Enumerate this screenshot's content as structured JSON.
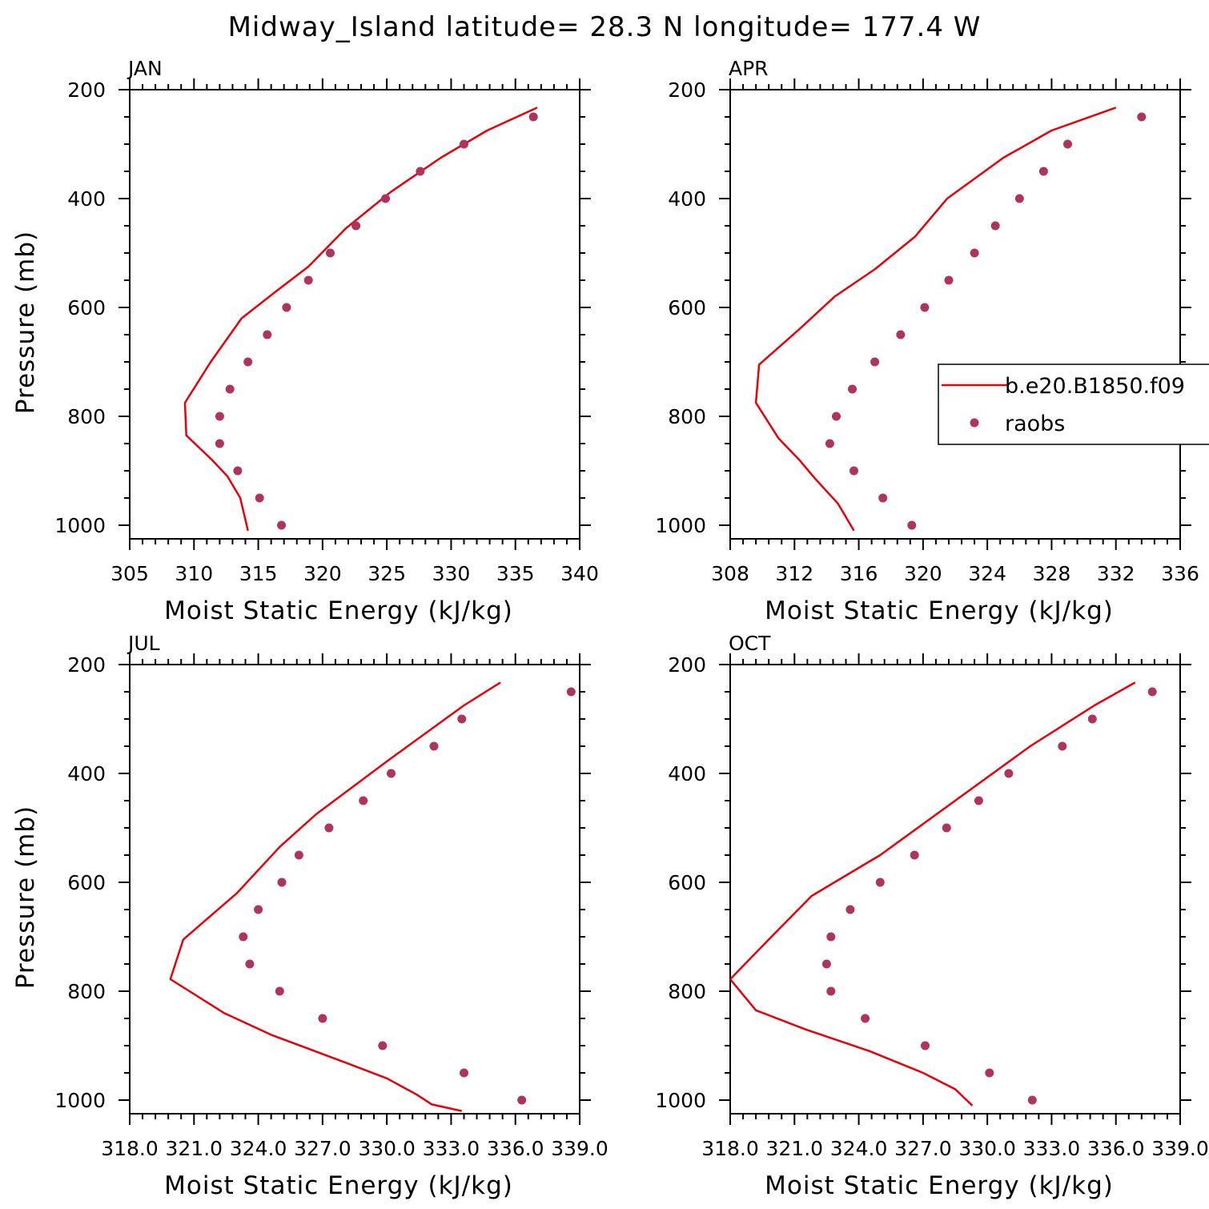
{
  "title": "Midway_Island  latitude= 28.3 N longitude= 177.4 W",
  "colors": {
    "model_line": "#e8000b",
    "raobs_marker": "#b0325f",
    "axes": "#000000"
  },
  "legend": {
    "entries": [
      {
        "label": "b.e20.B1850.f09",
        "symbol": "line",
        "color": "#e8000b"
      },
      {
        "label": "raobs",
        "symbol": "dot",
        "color": "#b0325f"
      }
    ],
    "placement": "right side of APR panel, clipped at figure edge"
  },
  "chart_data": [
    {
      "type": "line",
      "panel_label": "JAN",
      "xlabel": "Moist Static Energy (kJ/kg)",
      "ylabel": "Pressure (mb)",
      "xlim": [
        305,
        340
      ],
      "ylim": [
        1025,
        200
      ],
      "x_ticks": [
        305,
        310,
        315,
        320,
        325,
        330,
        335,
        340
      ],
      "x_tick_labels": [
        "305",
        "310",
        "315",
        "320",
        "325",
        "330",
        "335",
        "340"
      ],
      "y_ticks": [
        200,
        400,
        600,
        800,
        1000
      ],
      "y_tick_labels": [
        "200",
        "400",
        "600",
        "800",
        "1000"
      ],
      "series": [
        {
          "name": "b.e20.B1850.f09",
          "kind": "line",
          "x": [
            336.7,
            332.8,
            329.2,
            325.3,
            321.8,
            318.9,
            316.4,
            313.7,
            311.3,
            309.3,
            309.4,
            311.4,
            312.6,
            313.6,
            314.2
          ],
          "y": [
            233,
            275,
            325,
            388,
            455,
            525,
            570,
            620,
            700,
            775,
            835,
            880,
            910,
            950,
            1010
          ]
        },
        {
          "name": "raobs",
          "kind": "scatter",
          "x": [
            336.4,
            331.0,
            327.6,
            324.9,
            322.6,
            320.6,
            318.9,
            317.2,
            315.7,
            314.2,
            312.8,
            312.0,
            312.0,
            313.4,
            315.1,
            316.8
          ],
          "y": [
            250,
            300,
            350,
            400,
            450,
            500,
            550,
            600,
            650,
            700,
            750,
            800,
            850,
            900,
            950,
            1000
          ]
        }
      ]
    },
    {
      "type": "line",
      "panel_label": "APR",
      "xlabel": "Moist Static Energy (kJ/kg)",
      "ylabel": "",
      "xlim": [
        308,
        336
      ],
      "ylim": [
        1025,
        200
      ],
      "x_ticks": [
        308,
        312,
        316,
        320,
        324,
        328,
        332,
        336
      ],
      "x_tick_labels": [
        "308",
        "312",
        "316",
        "320",
        "324",
        "328",
        "332",
        "336"
      ],
      "y_ticks": [
        200,
        400,
        600,
        800,
        1000
      ],
      "y_tick_labels": [
        "200",
        "400",
        "600",
        "800",
        "1000"
      ],
      "series": [
        {
          "name": "b.e20.B1850.f09",
          "kind": "line",
          "x": [
            332.0,
            328.0,
            325.0,
            321.5,
            319.5,
            317.0,
            314.5,
            312.3,
            309.8,
            309.6,
            311.0,
            312.3,
            313.3,
            314.7,
            315.7
          ],
          "y": [
            233,
            275,
            325,
            400,
            470,
            530,
            580,
            640,
            705,
            775,
            840,
            880,
            915,
            960,
            1010
          ]
        },
        {
          "name": "raobs",
          "kind": "scatter",
          "x": [
            333.6,
            329.0,
            327.5,
            326.0,
            324.5,
            323.2,
            321.6,
            320.1,
            318.6,
            317.0,
            315.6,
            314.6,
            314.2,
            315.7,
            317.5,
            319.3
          ],
          "y": [
            250,
            300,
            350,
            400,
            450,
            500,
            550,
            600,
            650,
            700,
            750,
            800,
            850,
            900,
            950,
            1000
          ]
        }
      ]
    },
    {
      "type": "line",
      "panel_label": "JUL",
      "xlabel": "Moist Static Energy (kJ/kg)",
      "ylabel": "Pressure (mb)",
      "xlim": [
        318.0,
        339.0
      ],
      "ylim": [
        1025,
        200
      ],
      "x_ticks": [
        318,
        321,
        324,
        327,
        330,
        333,
        336,
        339
      ],
      "x_tick_labels": [
        "318.0",
        "321.0",
        "324.0",
        "327.0",
        "330.0",
        "333.0",
        "336.0",
        "339.0"
      ],
      "series": [
        {
          "name": "b.e20.B1850.f09",
          "kind": "line",
          "x": [
            335.3,
            333.6,
            330.1,
            326.7,
            325.0,
            323.0,
            320.5,
            319.9,
            322.4,
            324.6,
            328.0,
            330.0,
            331.4,
            332.1,
            333.5
          ],
          "y": [
            233,
            275,
            375,
            475,
            535,
            620,
            705,
            778,
            840,
            880,
            930,
            960,
            990,
            1008,
            1020
          ]
        },
        {
          "name": "raobs",
          "kind": "scatter",
          "x": [
            338.6,
            333.5,
            332.2,
            330.2,
            328.9,
            327.3,
            325.9,
            325.1,
            324.0,
            323.3,
            323.6,
            325.0,
            327.0,
            329.8,
            333.6,
            336.3
          ],
          "y": [
            250,
            300,
            350,
            400,
            450,
            500,
            550,
            600,
            650,
            700,
            750,
            800,
            850,
            900,
            950,
            1000
          ]
        }
      ],
      "y_ticks": [
        200,
        400,
        600,
        800,
        1000
      ],
      "y_tick_labels": [
        "200",
        "400",
        "600",
        "800",
        "1000"
      ]
    },
    {
      "type": "line",
      "panel_label": "OCT",
      "xlabel": "Moist Static Energy (kJ/kg)",
      "ylabel": "",
      "xlim": [
        318.0,
        339.0
      ],
      "ylim": [
        1025,
        200
      ],
      "x_ticks": [
        318,
        321,
        324,
        327,
        330,
        333,
        336,
        339
      ],
      "x_tick_labels": [
        "318.0",
        "321.0",
        "324.0",
        "327.0",
        "330.0",
        "333.0",
        "336.0",
        "339.0"
      ],
      "series": [
        {
          "name": "b.e20.B1850.f09",
          "kind": "line",
          "x": [
            336.9,
            335.0,
            332.0,
            328.5,
            325.0,
            321.8,
            319.8,
            318.0,
            319.2,
            321.5,
            324.5,
            327.0,
            328.5,
            329.3
          ],
          "y": [
            233,
            275,
            350,
            450,
            550,
            625,
            705,
            778,
            835,
            870,
            910,
            950,
            980,
            1010
          ]
        },
        {
          "name": "raobs",
          "kind": "scatter",
          "x": [
            337.7,
            334.9,
            333.5,
            331.0,
            329.6,
            328.1,
            326.6,
            325.0,
            323.6,
            322.7,
            322.5,
            322.7,
            324.3,
            327.1,
            330.1,
            332.1
          ],
          "y": [
            250,
            300,
            350,
            400,
            450,
            500,
            550,
            600,
            650,
            700,
            750,
            800,
            850,
            900,
            950,
            1000
          ]
        }
      ],
      "y_ticks": [
        200,
        400,
        600,
        800,
        1000
      ],
      "y_tick_labels": [
        "200",
        "400",
        "600",
        "800",
        "1000"
      ]
    }
  ]
}
